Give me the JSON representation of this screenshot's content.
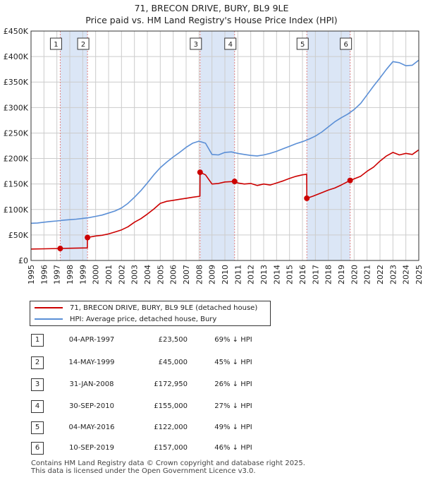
{
  "title": "71, BRECON DRIVE, BURY, BL9 9LE",
  "subtitle": "Price paid vs. HM Land Registry's House Price Index (HPI)",
  "colors": {
    "price_paid": "#cc0000",
    "hpi": "#5b8fd6",
    "shade": "#dbe6f6",
    "grid": "#cccccc",
    "vline": "#e08080"
  },
  "legend": {
    "price_paid_label": "71, BRECON DRIVE, BURY, BL9 9LE (detached house)",
    "hpi_label": "HPI: Average price, detached house, Bury"
  },
  "chart_data": {
    "type": "line",
    "title": "71, BRECON DRIVE, BURY, BL9 9LE",
    "subtitle": "Price paid vs. HM Land Registry's House Price Index (HPI)",
    "xlabel": "",
    "ylabel": "",
    "xlim": [
      1995,
      2025
    ],
    "ylim": [
      0,
      450000
    ],
    "x_ticks": [
      "1995",
      "1996",
      "1997",
      "1998",
      "1999",
      "2000",
      "2001",
      "2002",
      "2003",
      "2004",
      "2005",
      "2006",
      "2007",
      "2008",
      "2009",
      "2010",
      "2011",
      "2012",
      "2013",
      "2014",
      "2015",
      "2016",
      "2017",
      "2018",
      "2019",
      "2020",
      "2021",
      "2022",
      "2023",
      "2024",
      "2025"
    ],
    "y_ticks": [
      {
        "v": 0,
        "label": "£0"
      },
      {
        "v": 50000,
        "label": "£50K"
      },
      {
        "v": 100000,
        "label": "£100K"
      },
      {
        "v": 150000,
        "label": "£150K"
      },
      {
        "v": 200000,
        "label": "£200K"
      },
      {
        "v": 250000,
        "label": "£250K"
      },
      {
        "v": 300000,
        "label": "£300K"
      },
      {
        "v": 350000,
        "label": "£350K"
      },
      {
        "v": 400000,
        "label": "£400K"
      },
      {
        "v": 450000,
        "label": "£450K"
      }
    ],
    "grid": true,
    "shaded_spans": [
      [
        1997.26,
        1999.37
      ],
      [
        2008.08,
        2010.75
      ],
      [
        2016.34,
        2019.69
      ]
    ],
    "series": [
      {
        "name": "71, BRECON DRIVE, BURY, BL9 9LE (detached house)",
        "points": [
          [
            1995.0,
            22500
          ],
          [
            1996.0,
            22800
          ],
          [
            1997.26,
            23500
          ],
          [
            1998.0,
            23900
          ],
          [
            1999.0,
            24500
          ],
          [
            1999.36,
            24700
          ],
          [
            1999.37,
            45000
          ],
          [
            2000.0,
            48000
          ],
          [
            2000.5,
            49500
          ],
          [
            2001.0,
            52000
          ],
          [
            2001.5,
            56000
          ],
          [
            2002.0,
            60000
          ],
          [
            2002.5,
            66000
          ],
          [
            2003.0,
            75000
          ],
          [
            2003.5,
            82000
          ],
          [
            2004.0,
            91000
          ],
          [
            2004.5,
            101000
          ],
          [
            2005.0,
            112000
          ],
          [
            2005.5,
            116000
          ],
          [
            2006.0,
            118000
          ],
          [
            2006.5,
            120000
          ],
          [
            2007.0,
            122000
          ],
          [
            2007.5,
            124000
          ],
          [
            2008.07,
            126000
          ],
          [
            2008.08,
            172950
          ],
          [
            2008.5,
            168000
          ],
          [
            2009.0,
            150000
          ],
          [
            2009.5,
            151000
          ],
          [
            2010.0,
            154000
          ],
          [
            2010.75,
            155000
          ],
          [
            2011.0,
            152000
          ],
          [
            2011.5,
            150000
          ],
          [
            2012.0,
            151000
          ],
          [
            2012.5,
            147000
          ],
          [
            2013.0,
            150000
          ],
          [
            2013.5,
            148000
          ],
          [
            2014.0,
            152000
          ],
          [
            2014.5,
            156000
          ],
          [
            2015.0,
            161000
          ],
          [
            2015.5,
            165000
          ],
          [
            2016.0,
            168000
          ],
          [
            2016.33,
            169000
          ],
          [
            2016.34,
            122000
          ],
          [
            2016.8,
            126000
          ],
          [
            2017.2,
            130000
          ],
          [
            2017.6,
            134000
          ],
          [
            2018.0,
            138000
          ],
          [
            2018.5,
            142000
          ],
          [
            2019.0,
            148000
          ],
          [
            2019.69,
            157000
          ],
          [
            2020.0,
            160000
          ],
          [
            2020.5,
            165000
          ],
          [
            2021.0,
            175000
          ],
          [
            2021.5,
            183000
          ],
          [
            2022.0,
            195000
          ],
          [
            2022.5,
            205000
          ],
          [
            2023.0,
            212000
          ],
          [
            2023.5,
            207000
          ],
          [
            2024.0,
            210000
          ],
          [
            2024.5,
            208000
          ],
          [
            2025.0,
            217000
          ]
        ]
      },
      {
        "name": "HPI: Average price, detached house, Bury",
        "points": [
          [
            1995.0,
            73000
          ],
          [
            1995.5,
            73500
          ],
          [
            1996.0,
            75000
          ],
          [
            1996.5,
            76500
          ],
          [
            1997.0,
            77500
          ],
          [
            1997.5,
            79000
          ],
          [
            1998.0,
            80000
          ],
          [
            1998.5,
            81000
          ],
          [
            1999.0,
            82500
          ],
          [
            1999.5,
            84000
          ],
          [
            2000.0,
            86500
          ],
          [
            2000.5,
            89000
          ],
          [
            2001.0,
            93000
          ],
          [
            2001.5,
            97000
          ],
          [
            2002.0,
            103000
          ],
          [
            2002.5,
            112000
          ],
          [
            2003.0,
            124000
          ],
          [
            2003.5,
            137000
          ],
          [
            2004.0,
            152000
          ],
          [
            2004.5,
            168000
          ],
          [
            2005.0,
            182000
          ],
          [
            2005.5,
            193000
          ],
          [
            2006.0,
            203000
          ],
          [
            2006.5,
            212000
          ],
          [
            2007.0,
            222000
          ],
          [
            2007.5,
            230000
          ],
          [
            2008.0,
            234000
          ],
          [
            2008.5,
            230000
          ],
          [
            2009.0,
            208000
          ],
          [
            2009.5,
            207000
          ],
          [
            2010.0,
            212000
          ],
          [
            2010.5,
            213000
          ],
          [
            2011.0,
            210000
          ],
          [
            2011.5,
            208000
          ],
          [
            2012.0,
            206000
          ],
          [
            2012.5,
            205000
          ],
          [
            2013.0,
            207000
          ],
          [
            2013.5,
            210000
          ],
          [
            2014.0,
            214000
          ],
          [
            2014.5,
            219000
          ],
          [
            2015.0,
            224000
          ],
          [
            2015.5,
            229000
          ],
          [
            2016.0,
            233000
          ],
          [
            2016.5,
            238000
          ],
          [
            2017.0,
            244000
          ],
          [
            2017.5,
            252000
          ],
          [
            2018.0,
            262000
          ],
          [
            2018.5,
            272000
          ],
          [
            2019.0,
            280000
          ],
          [
            2019.5,
            287000
          ],
          [
            2020.0,
            296000
          ],
          [
            2020.5,
            308000
          ],
          [
            2021.0,
            325000
          ],
          [
            2021.5,
            342000
          ],
          [
            2022.0,
            358000
          ],
          [
            2022.5,
            375000
          ],
          [
            2023.0,
            390000
          ],
          [
            2023.5,
            388000
          ],
          [
            2024.0,
            382000
          ],
          [
            2024.5,
            383000
          ],
          [
            2025.0,
            393000
          ]
        ]
      }
    ],
    "sales": [
      {
        "n": "1",
        "x": 1997.26,
        "price": 23500
      },
      {
        "n": "2",
        "x": 1999.37,
        "price": 45000
      },
      {
        "n": "3",
        "x": 2008.08,
        "price": 172950
      },
      {
        "n": "4",
        "x": 2010.75,
        "price": 155000
      },
      {
        "n": "5",
        "x": 2016.34,
        "price": 122000
      },
      {
        "n": "6",
        "x": 2019.69,
        "price": 157000
      }
    ]
  },
  "table": [
    {
      "n": "1",
      "date": "04-APR-1997",
      "price": "£23,500",
      "hpi": "69% ↓ HPI"
    },
    {
      "n": "2",
      "date": "14-MAY-1999",
      "price": "£45,000",
      "hpi": "45% ↓ HPI"
    },
    {
      "n": "3",
      "date": "31-JAN-2008",
      "price": "£172,950",
      "hpi": "26% ↓ HPI"
    },
    {
      "n": "4",
      "date": "30-SEP-2010",
      "price": "£155,000",
      "hpi": "27% ↓ HPI"
    },
    {
      "n": "5",
      "date": "04-MAY-2016",
      "price": "£122,000",
      "hpi": "49% ↓ HPI"
    },
    {
      "n": "6",
      "date": "10-SEP-2019",
      "price": "£157,000",
      "hpi": "46% ↓ HPI"
    }
  ],
  "footer": {
    "line1": "Contains HM Land Registry data © Crown copyright and database right 2025.",
    "line2": "This data is licensed under the Open Government Licence v3.0."
  }
}
